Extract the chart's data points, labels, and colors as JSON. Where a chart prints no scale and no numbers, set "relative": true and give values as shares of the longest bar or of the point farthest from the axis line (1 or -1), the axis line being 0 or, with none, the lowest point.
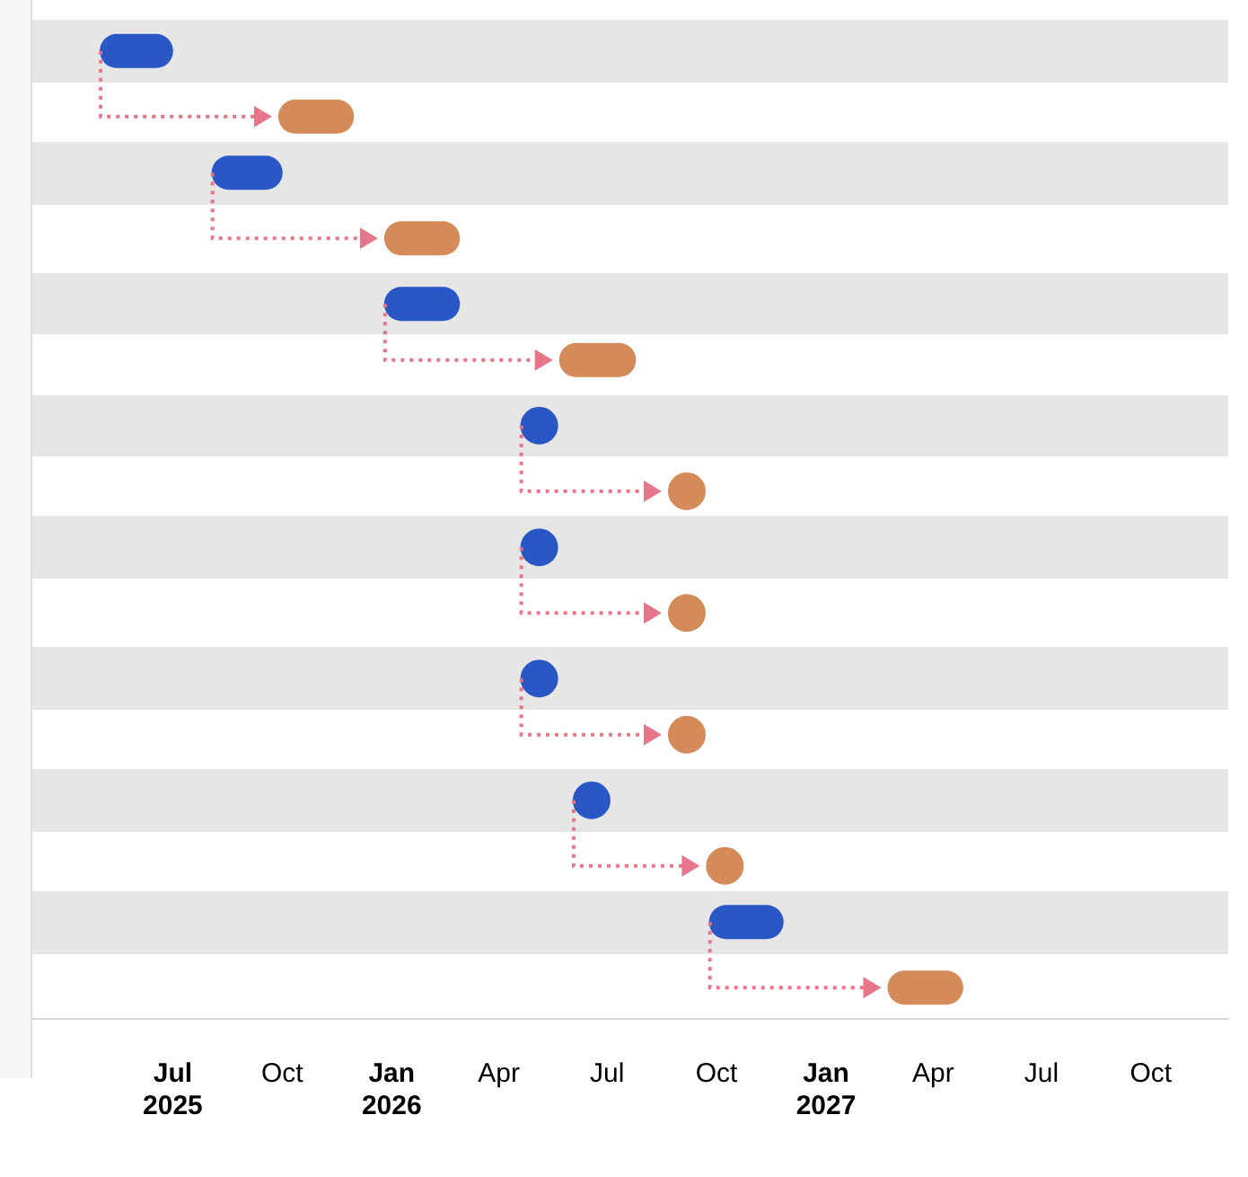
{
  "chart_data": {
    "type": "line",
    "relative": true,
    "series": [
      {
        "color": "#2a57c6",
        "marker": "none",
        "x": [
          "2025-05-15",
          "2025-06-17"
        ],
        "values": [
          1,
          1
        ]
      },
      {
        "color": "#d48a59",
        "marker": "none",
        "x": [
          "2025-10-12",
          "2025-11-16"
        ],
        "values": [
          0.93,
          0.93
        ]
      },
      {
        "color": "#2a57c6",
        "marker": "none",
        "x": [
          "2025-08-17",
          "2025-09-17"
        ],
        "values": [
          0.87,
          0.87
        ]
      },
      {
        "color": "#d48a59",
        "marker": "none",
        "x": [
          "2026-01-09",
          "2026-02-13"
        ],
        "values": [
          0.8,
          0.8
        ]
      },
      {
        "color": "#2a57c6",
        "marker": "none",
        "x": [
          "2026-01-09",
          "2026-02-13"
        ],
        "values": [
          0.73,
          0.73
        ]
      },
      {
        "color": "#d48a59",
        "marker": "none",
        "x": [
          "2026-06-05",
          "2026-07-11"
        ],
        "values": [
          0.67,
          0.67
        ]
      },
      {
        "type": "scatter",
        "color": "#2a57c6",
        "marker": "circle",
        "x": [
          "2026-05-05",
          "2026-05-05",
          "2026-05-05",
          "2026-06-18"
        ],
        "values": [
          0.6,
          0.47,
          0.33,
          0.2
        ]
      },
      {
        "type": "scatter",
        "color": "#d48a59",
        "marker": "circle",
        "x": [
          "2026-09-06",
          "2026-09-06",
          "2026-09-06",
          "2026-10-08"
        ],
        "values": [
          0.53,
          0.4,
          0.27,
          0.13
        ]
      },
      {
        "color": "#2a57c6",
        "marker": "none",
        "x": [
          "2026-10-09",
          "2026-11-12"
        ],
        "values": [
          0.07,
          0.07
        ]
      },
      {
        "color": "#d48a59",
        "marker": "none",
        "x": [
          "2027-03-08",
          "2027-04-12"
        ],
        "values": [
          0,
          0
        ]
      }
    ],
    "xlim": [
      "2025-03-05",
      "2027-12-05"
    ],
    "xticks": [
      {
        "value": "2025-07",
        "label": "Jul 2025"
      },
      {
        "value": "2025-10",
        "label": "Oct"
      },
      {
        "value": "2026-01",
        "label": "Jan 2026"
      },
      {
        "value": "2026-04",
        "label": "Apr"
      },
      {
        "value": "2026-07",
        "label": "Jul"
      },
      {
        "value": "2026-10",
        "label": "Oct"
      },
      {
        "value": "2027-01",
        "label": "Jan 2027"
      },
      {
        "value": "2027-04",
        "label": "Apr"
      },
      {
        "value": "2027-07",
        "label": "Jul"
      },
      {
        "value": "2027-10",
        "label": "Oct"
      }
    ]
  }
}
